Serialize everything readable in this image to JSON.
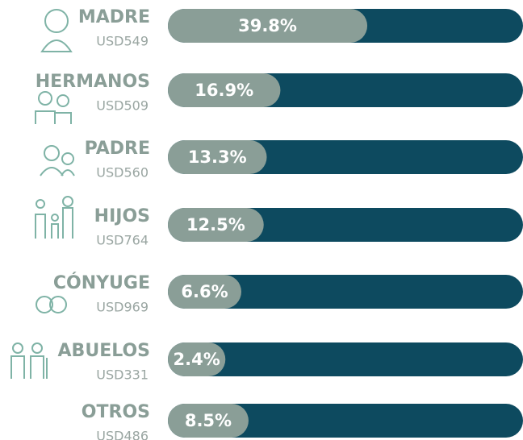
{
  "chart_data": {
    "type": "bar",
    "categories": [
      "MADRE",
      "HERMANOS",
      "PADRE",
      "HIJOS",
      "CÓNYUGE",
      "ABUELOS",
      "OTROS"
    ],
    "amounts": [
      "USD549",
      "USD509",
      "USD560",
      "USD764",
      "USD969",
      "USD331",
      "USD486"
    ],
    "values": [
      39.8,
      16.9,
      13.3,
      12.5,
      6.6,
      2.4,
      8.5
    ],
    "value_labels": [
      "39.8%",
      "16.9%",
      "13.3%",
      "12.5%",
      "6.6%",
      "2.4%",
      "8.5%"
    ],
    "color": "#8a9e97",
    "track_color": "#0d4a5f"
  }
}
